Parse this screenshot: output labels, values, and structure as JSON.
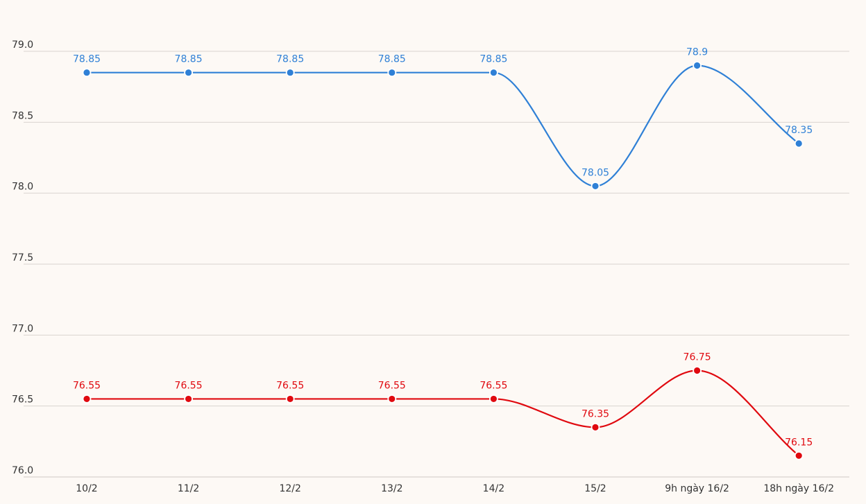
{
  "chart_data": {
    "type": "line",
    "title": "",
    "xlabel": "",
    "ylabel": "",
    "categories": [
      "10/2",
      "11/2",
      "12/2",
      "13/2",
      "14/2",
      "15/2",
      "9h ngày 16/2",
      "18h ngày 16/2"
    ],
    "yticks": [
      "76.0",
      "76.5",
      "77.0",
      "77.5",
      "78.0",
      "78.5",
      "79.0"
    ],
    "ylim": [
      76.0,
      79.0
    ],
    "grid": true,
    "legend": "none",
    "series": [
      {
        "color": "#2f80d6",
        "values": [
          78.85,
          78.85,
          78.85,
          78.85,
          78.85,
          78.05,
          78.9,
          78.35
        ],
        "labels": [
          "78.85",
          "78.85",
          "78.85",
          "78.85",
          "78.85",
          "78.05",
          "78.9",
          "78.35"
        ]
      },
      {
        "color": "#e0090f",
        "values": [
          76.55,
          76.55,
          76.55,
          76.55,
          76.55,
          76.35,
          76.75,
          76.15
        ],
        "labels": [
          "76.55",
          "76.55",
          "76.55",
          "76.55",
          "76.55",
          "76.35",
          "76.75",
          "76.15"
        ]
      }
    ]
  }
}
